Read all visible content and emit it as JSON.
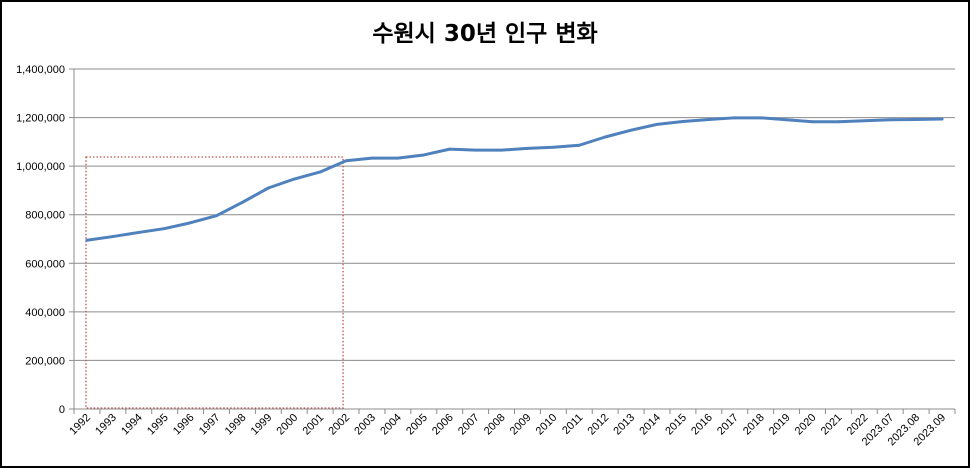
{
  "chart_data": {
    "type": "line",
    "title": "수원시 30년 인구 변화",
    "xlabel": "",
    "ylabel": "",
    "ylim": [
      0,
      1400000
    ],
    "y_ticks": [
      "0",
      "200,000",
      "400,000",
      "600,000",
      "800,000",
      "1,000,000",
      "1,200,000",
      "1,400,000"
    ],
    "grid": true,
    "legend": "none",
    "line_color": "#4f81bd",
    "highlight_box": {
      "from": "1992",
      "to": "2002",
      "color": "#c0504d",
      "style": "dotted"
    },
    "categories": [
      "1992",
      "1993",
      "1994",
      "1995",
      "1996",
      "1997",
      "1998",
      "1999",
      "2000",
      "2001",
      "2002",
      "2003",
      "2004",
      "2005",
      "2006",
      "2007",
      "2008",
      "2009",
      "2010",
      "2011",
      "2012",
      "2013",
      "2014",
      "2015",
      "2016",
      "2017",
      "2018",
      "2019",
      "2020",
      "2021",
      "2022",
      "2023.07",
      "2023.08",
      "2023.09"
    ],
    "series": [
      {
        "values": [
          695000,
          710000,
          727000,
          743000,
          767000,
          796000,
          851000,
          910000,
          947000,
          976000,
          1022000,
          1033000,
          1033000,
          1046000,
          1070000,
          1066000,
          1066000,
          1073000,
          1078000,
          1086000,
          1120000,
          1148000,
          1172000,
          1184000,
          1192000,
          1199000,
          1199000,
          1191000,
          1183000,
          1183000,
          1187000,
          1191000,
          1192000,
          1194000
        ]
      }
    ]
  }
}
